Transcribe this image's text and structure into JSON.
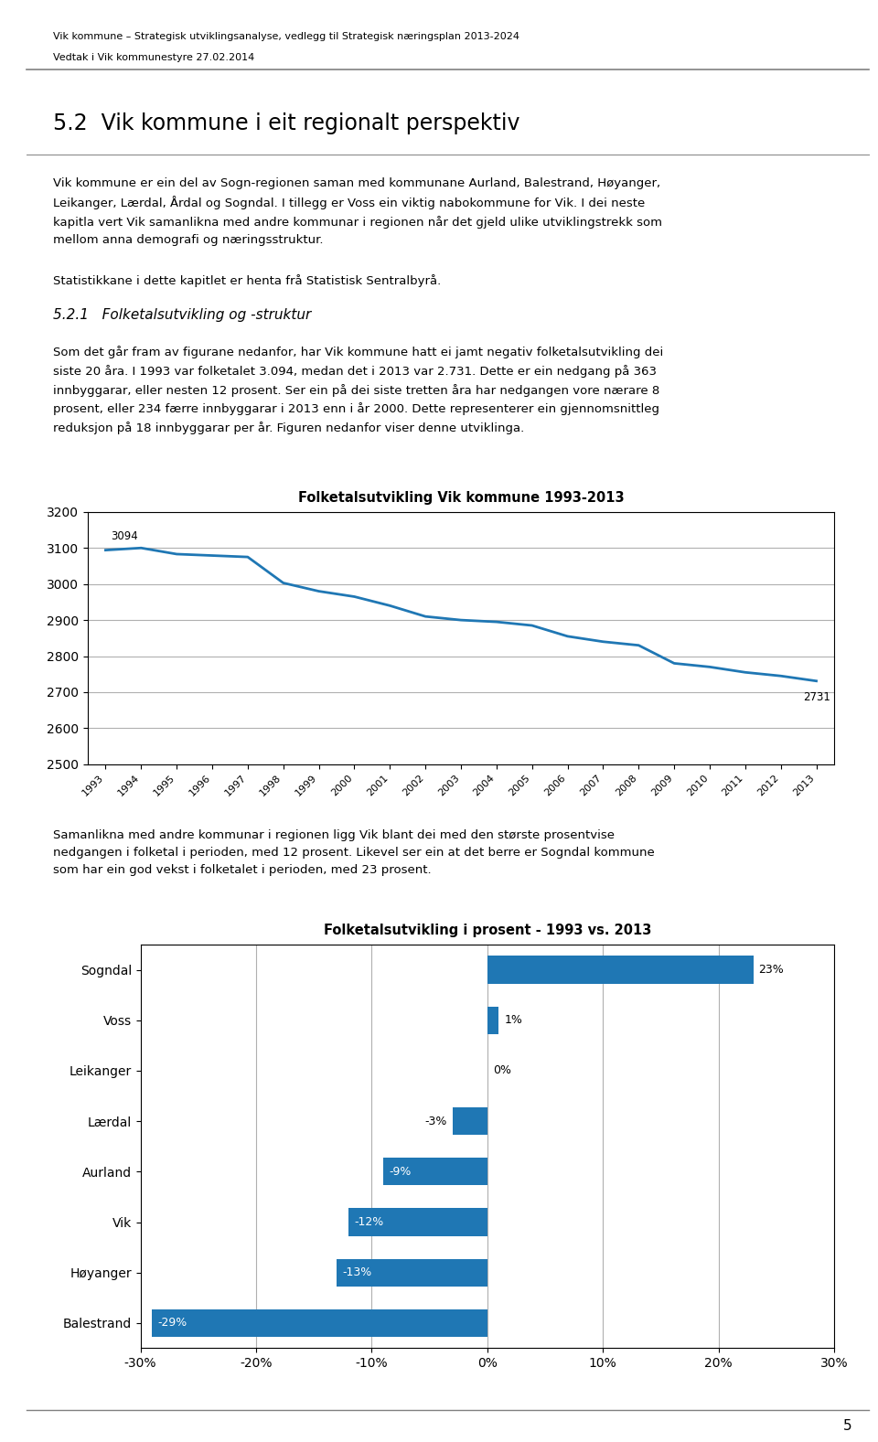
{
  "header_line1": "Vik kommune – Strategisk utviklingsanalyse, vedlegg til Strategisk næringsplan 2013-2024",
  "header_line2": "Vedtak i Vik kommunestyre 27.02.2014",
  "section_title": "5.2  Vik kommune i eit regionalt perspektiv",
  "body_text1": "Vik kommune er ein del av Sogn-regionen saman med kommunane Aurland, Balestrand, Høyanger,\nLeikanger, Lærdal, Årdal og Sogndal. I tillegg er Voss ein viktig nabokommune for Vik. I dei neste\nkapitla vert Vik samanlikna med andre kommunar i regionen når det gjeld ulike utviklingstrekk som\nmellom anna demografi og næringsstruktur.",
  "body_text2": "Statistikkane i dette kapitlet er henta frå Statistisk Sentralbyrå.",
  "subsection_title": "5.2.1   Folketalsutvikling og -struktur",
  "body_text3": "Som det går fram av figurane nedanfor, har Vik kommune hatt ei jamt negativ folketalsutvikling dei\nsiste 20 åra. I 1993 var folketalet 3.094, medan det i 2013 var 2.731. Dette er ein nedgang på 363\ninnbyggarar, eller nesten 12 prosent. Ser ein på dei siste tretten åra har nedgangen vore nærare 8\nprosent, eller 234 færre innbyggarar i 2013 enn i år 2000. Dette representerer ein gjennomsnittleg\nreduksjon på 18 innbyggarar per år. Figuren nedanfor viser denne utviklinga.",
  "body_text4": "Samanlikna med andre kommunar i regionen ligg Vik blant dei med den største prosentvise\nnedgangen i folketal i perioden, med 12 prosent. Likevel ser ein at det berre er Sogndal kommune\nsom har ein god vekst i folketalet i perioden, med 23 prosent.",
  "footer_text": "5",
  "chart_data": [
    {
      "type": "line",
      "title": "Folketalsutvikling Vik kommune 1993-2013",
      "x": [
        1993,
        1994,
        1995,
        1996,
        1997,
        1998,
        1999,
        2000,
        2001,
        2002,
        2003,
        2004,
        2005,
        2006,
        2007,
        2008,
        2009,
        2010,
        2011,
        2012,
        2013
      ],
      "values": [
        3094,
        3100,
        3083,
        3079,
        3075,
        3003,
        2980,
        2965,
        2940,
        2910,
        2900,
        2895,
        2885,
        2855,
        2840,
        2830,
        2780,
        2770,
        2755,
        2745,
        2731
      ],
      "xlim": [
        1992.5,
        2013.5
      ],
      "xticks": [
        1993,
        1994,
        1995,
        1996,
        1997,
        1998,
        1999,
        2000,
        2001,
        2002,
        2003,
        2004,
        2005,
        2006,
        2007,
        2008,
        2009,
        2010,
        2011,
        2012,
        2013
      ],
      "ylim": [
        2500,
        3200
      ],
      "yticks": [
        2500,
        2600,
        2700,
        2800,
        2900,
        3000,
        3100,
        3200
      ],
      "grid": true,
      "annotations": [
        {
          "text": "3094",
          "x": 1993,
          "y": 3094
        },
        {
          "text": "2731",
          "x": 2013,
          "y": 2731
        }
      ]
    },
    {
      "type": "bar",
      "orientation": "horizontal",
      "title": "Folketalsutvikling i prosent - 1993 vs. 2013",
      "categories": [
        "Sogndal",
        "Voss",
        "Leikanger",
        "Lærdal",
        "Aurland",
        "Vik",
        "Høyanger",
        "Balestrand"
      ],
      "values": [
        23,
        1,
        0,
        -3,
        -9,
        -12,
        -13,
        -29
      ],
      "value_labels": [
        "23%",
        "1%",
        "0%",
        "-3%",
        "-9%",
        "-12%",
        "-13%",
        "-29%"
      ],
      "data_labels": true,
      "xlim": [
        -30,
        30
      ],
      "xticks": [
        {
          "value": -30,
          "label": "-30%"
        },
        {
          "value": -20,
          "label": "-20%"
        },
        {
          "value": -10,
          "label": "-10%"
        },
        {
          "value": 0,
          "label": "0%"
        },
        {
          "value": 10,
          "label": "10%"
        },
        {
          "value": 20,
          "label": "20%"
        },
        {
          "value": 30,
          "label": "30%"
        }
      ],
      "grid": true
    }
  ]
}
